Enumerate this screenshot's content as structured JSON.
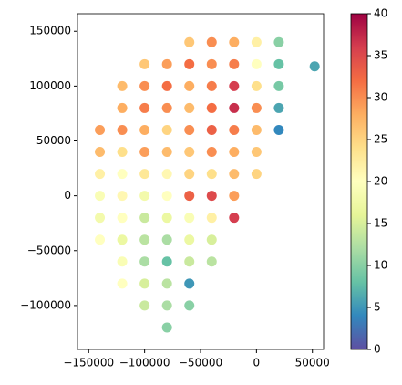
{
  "chart_data": {
    "type": "scatter",
    "x": [
      -60000,
      -40000,
      -20000,
      0,
      20000,
      -100000,
      -80000,
      -60000,
      -40000,
      -20000,
      0,
      20000,
      52000,
      -120000,
      -100000,
      -80000,
      -60000,
      -40000,
      -20000,
      0,
      20000,
      -120000,
      -100000,
      -80000,
      -60000,
      -40000,
      -20000,
      0,
      20000,
      -140000,
      -120000,
      -100000,
      -80000,
      -60000,
      -40000,
      -20000,
      0,
      20000,
      -140000,
      -120000,
      -100000,
      -80000,
      -60000,
      -40000,
      -20000,
      0,
      -140000,
      -120000,
      -100000,
      -80000,
      -60000,
      -40000,
      -20000,
      0,
      -140000,
      -120000,
      -100000,
      -80000,
      -60000,
      -40000,
      -20000,
      -140000,
      -120000,
      -100000,
      -80000,
      -60000,
      -40000,
      -20000,
      -140000,
      -120000,
      -100000,
      -80000,
      -60000,
      -40000,
      -120000,
      -100000,
      -80000,
      -60000,
      -40000,
      -120000,
      -100000,
      -80000,
      -60000,
      -100000,
      -80000,
      -60000,
      -80000
    ],
    "y": [
      140000,
      140000,
      140000,
      140000,
      140000,
      120000,
      120000,
      120000,
      120000,
      120000,
      120000,
      120000,
      118000,
      100000,
      100000,
      100000,
      100000,
      100000,
      100000,
      100000,
      100000,
      80000,
      80000,
      80000,
      80000,
      80000,
      80000,
      80000,
      80000,
      60000,
      60000,
      60000,
      60000,
      60000,
      60000,
      60000,
      60000,
      60000,
      40000,
      40000,
      40000,
      40000,
      40000,
      40000,
      40000,
      40000,
      20000,
      20000,
      20000,
      20000,
      20000,
      20000,
      20000,
      20000,
      0,
      0,
      0,
      0,
      0,
      0,
      0,
      -20000,
      -20000,
      -20000,
      -20000,
      -20000,
      -20000,
      -20000,
      -40000,
      -40000,
      -40000,
      -40000,
      -40000,
      -40000,
      -60000,
      -60000,
      -60000,
      -60000,
      -60000,
      -80000,
      -80000,
      -80000,
      -80000,
      -100000,
      -100000,
      -100000,
      -120000
    ],
    "values": [
      26,
      30,
      28,
      22,
      10,
      26,
      29,
      32,
      30,
      31,
      20,
      8,
      6,
      27,
      30,
      32,
      28,
      31,
      36,
      24,
      9,
      28,
      31,
      30,
      27,
      32,
      37,
      30,
      6,
      29,
      30,
      28,
      25,
      30,
      33,
      31,
      27,
      4,
      27,
      24,
      29,
      27,
      26,
      30,
      28,
      26,
      22,
      20,
      23,
      21,
      25,
      24,
      27,
      25,
      19,
      21,
      18,
      20,
      33,
      35,
      29,
      18,
      20,
      14,
      17,
      19,
      22,
      36,
      20,
      17,
      13,
      12,
      17,
      15,
      19,
      12,
      8,
      14,
      13,
      20,
      15,
      13,
      5,
      14,
      12,
      10,
      10
    ],
    "xlim": [
      -160000,
      60000
    ],
    "ylim": [
      -140000,
      166000
    ],
    "xticks": [
      {
        "value": -150000,
        "label": "−150000"
      },
      {
        "value": -100000,
        "label": "−100000"
      },
      {
        "value": -50000,
        "label": "−50000"
      },
      0,
      50000
    ],
    "yticks": [
      {
        "value": -100000,
        "label": "−100000"
      },
      {
        "value": -50000,
        "label": "−50000"
      },
      0,
      50000,
      100000,
      150000
    ],
    "clim": [
      0,
      40
    ],
    "cticks": [
      0,
      5,
      10,
      15,
      20,
      25,
      30,
      35,
      40
    ],
    "colormap": [
      "#5e4fa2",
      "#3288bd",
      "#66c2a5",
      "#abdda4",
      "#e6f598",
      "#ffffbf",
      "#fee08b",
      "#fdae61",
      "#f46d43",
      "#d53e4f",
      "#9e0142"
    ]
  }
}
